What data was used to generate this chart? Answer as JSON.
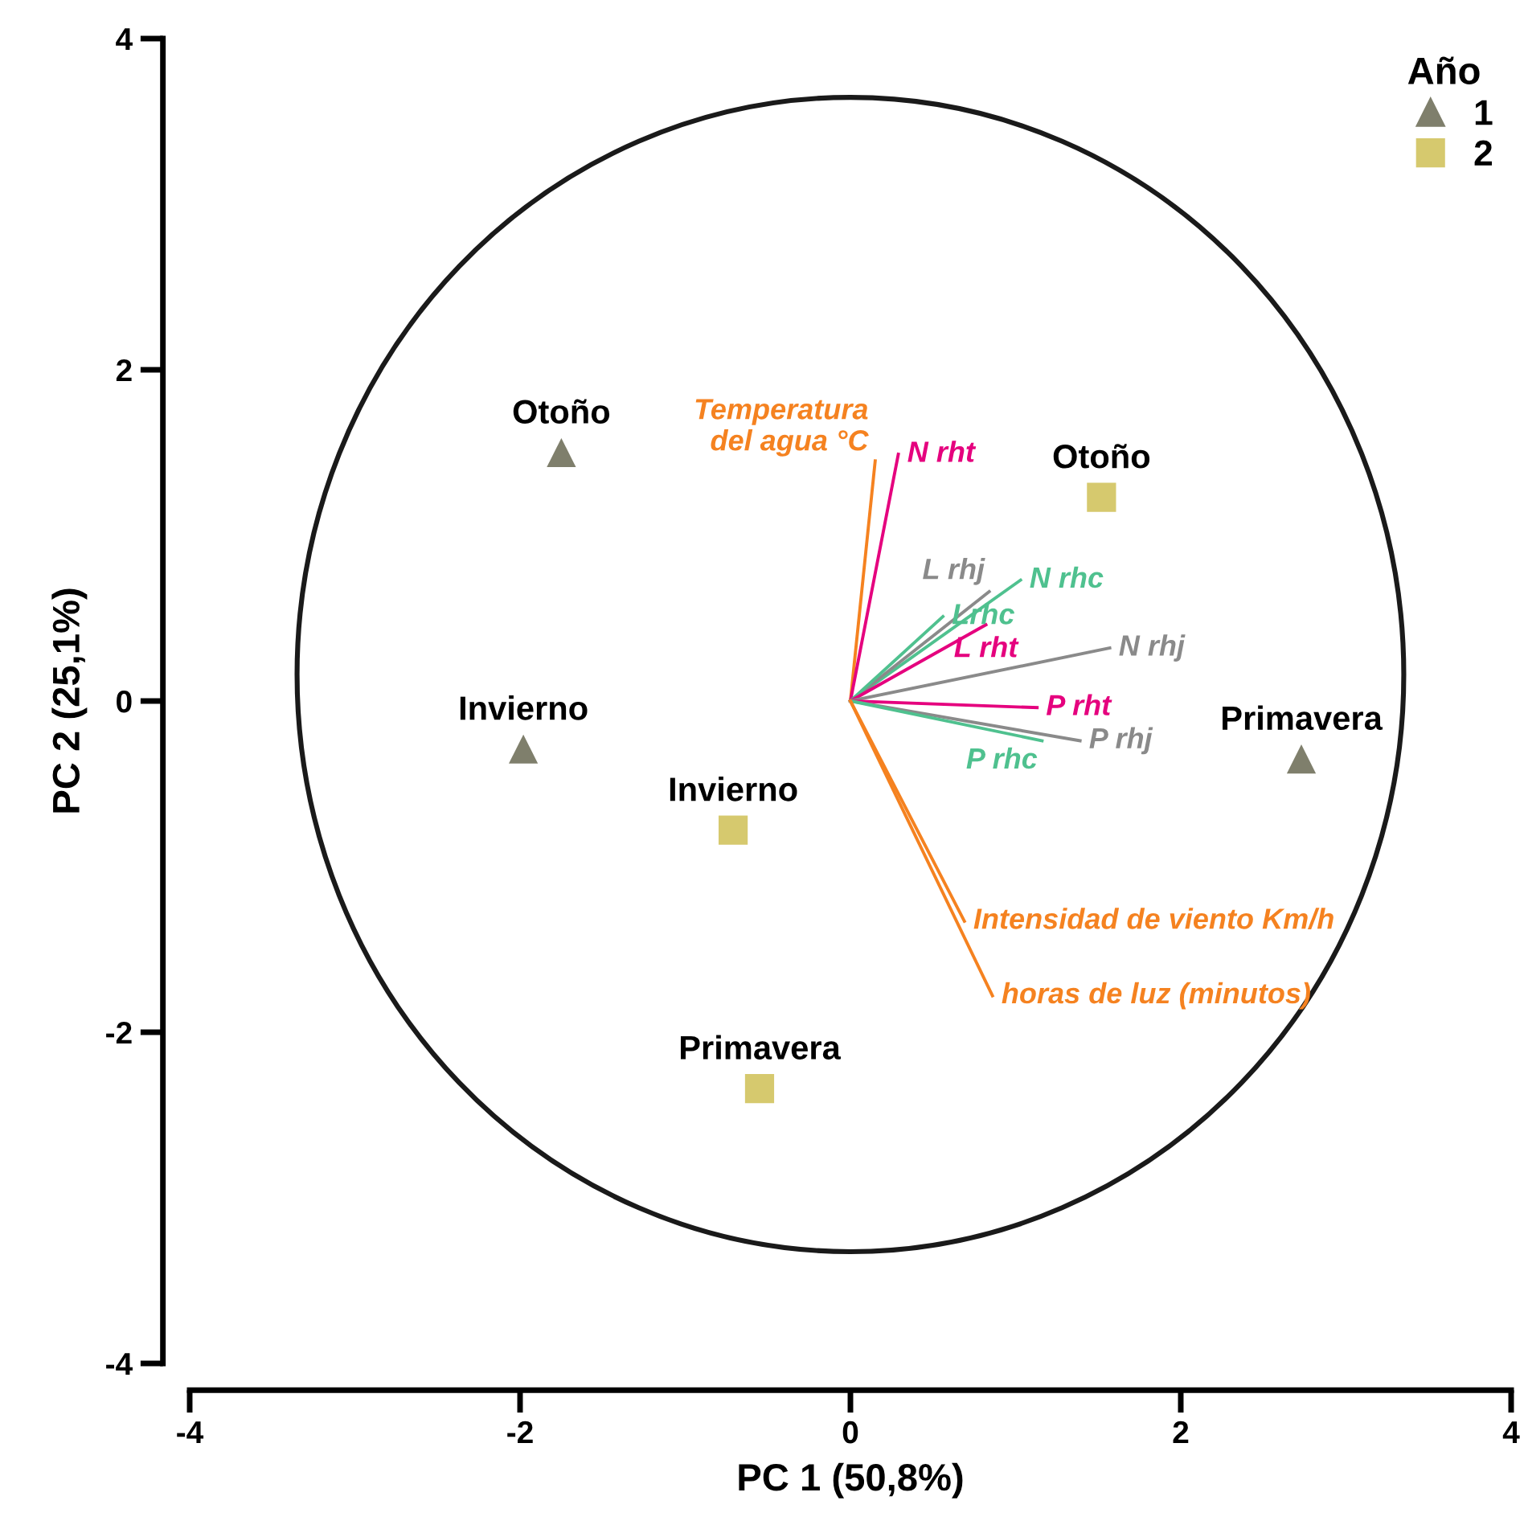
{
  "chart_data": {
    "type": "scatter",
    "xlabel": "PC 1 (50,8%)",
    "ylabel": "PC 2 (25,1%)",
    "legend_title": "Año",
    "legend": "top right",
    "grid": false,
    "xlim": [
      -4,
      4
    ],
    "xticks": [
      -4,
      -2,
      0,
      2,
      4
    ],
    "ylim": [
      -4,
      4
    ],
    "yticks": [
      -4,
      -2,
      0,
      2,
      4
    ],
    "series": [
      {
        "name": "1",
        "color": "#7f7f6c",
        "marker": "triangle",
        "x": [
          -1.75,
          -1.98,
          2.73
        ],
        "values": [
          1.5,
          -0.29,
          -0.35
        ]
      },
      {
        "name": "2",
        "color": "#d6c96e",
        "marker": "square",
        "x": [
          1.52,
          -0.71,
          -0.55
        ],
        "values": [
          1.23,
          -0.78,
          -2.34
        ]
      },
      {
        "type": "line",
        "name": "Temperatura\ndel agua °C",
        "color": "#f58220",
        "x": [
          0,
          0.15
        ],
        "values": [
          0,
          1.45
        ]
      },
      {
        "type": "line",
        "name": "N rht",
        "color": "#e5007e",
        "x": [
          0,
          0.29
        ],
        "values": [
          0,
          1.49
        ]
      },
      {
        "type": "line",
        "name": "N rhc",
        "color": "#4fc18f",
        "x": [
          0,
          1.03
        ],
        "values": [
          0,
          0.73
        ]
      },
      {
        "type": "line",
        "name": "L rhj",
        "color": "#8a8a8a",
        "x": [
          0,
          0.84
        ],
        "values": [
          0,
          0.66
        ]
      },
      {
        "type": "line",
        "name": "Lrhc",
        "color": "#4fc18f",
        "x": [
          0,
          0.56
        ],
        "values": [
          0,
          0.51
        ]
      },
      {
        "type": "line",
        "name": "L rht",
        "color": "#e5007e",
        "x": [
          0,
          0.82
        ],
        "values": [
          0,
          0.46
        ]
      },
      {
        "type": "line",
        "name": "N rhj",
        "color": "#8a8a8a",
        "x": [
          0,
          1.57
        ],
        "values": [
          0,
          0.32
        ]
      },
      {
        "type": "line",
        "name": "P rht",
        "color": "#e5007e",
        "x": [
          0,
          1.13
        ],
        "values": [
          0,
          -0.04
        ]
      },
      {
        "type": "line",
        "name": "P rhj",
        "color": "#8a8a8a",
        "x": [
          0,
          1.39
        ],
        "values": [
          0,
          -0.24
        ]
      },
      {
        "type": "line",
        "name": "P rhc",
        "color": "#4fc18f",
        "x": [
          0,
          1.16
        ],
        "values": [
          0,
          -0.24
        ]
      },
      {
        "type": "line",
        "name": "Intensidad de viento Km/h",
        "color": "#f58220",
        "x": [
          0,
          0.69
        ],
        "values": [
          0,
          -1.33
        ]
      },
      {
        "type": "line",
        "name": "horas de luz (minutos)",
        "color": "#f58220",
        "x": [
          0,
          0.86
        ],
        "values": [
          0,
          -1.78
        ]
      }
    ],
    "annotations": [
      {
        "text": "Otoño",
        "x": -1.75,
        "y": 1.5
      },
      {
        "text": "Invierno",
        "x": -1.98,
        "y": -0.29
      },
      {
        "text": "Primavera",
        "x": 2.73,
        "y": -0.35
      },
      {
        "text": "Otoño",
        "x": 1.52,
        "y": 1.23
      },
      {
        "text": "Invierno",
        "x": -0.71,
        "y": -0.78
      },
      {
        "text": "Primavera",
        "x": -0.55,
        "y": -2.34
      }
    ]
  }
}
